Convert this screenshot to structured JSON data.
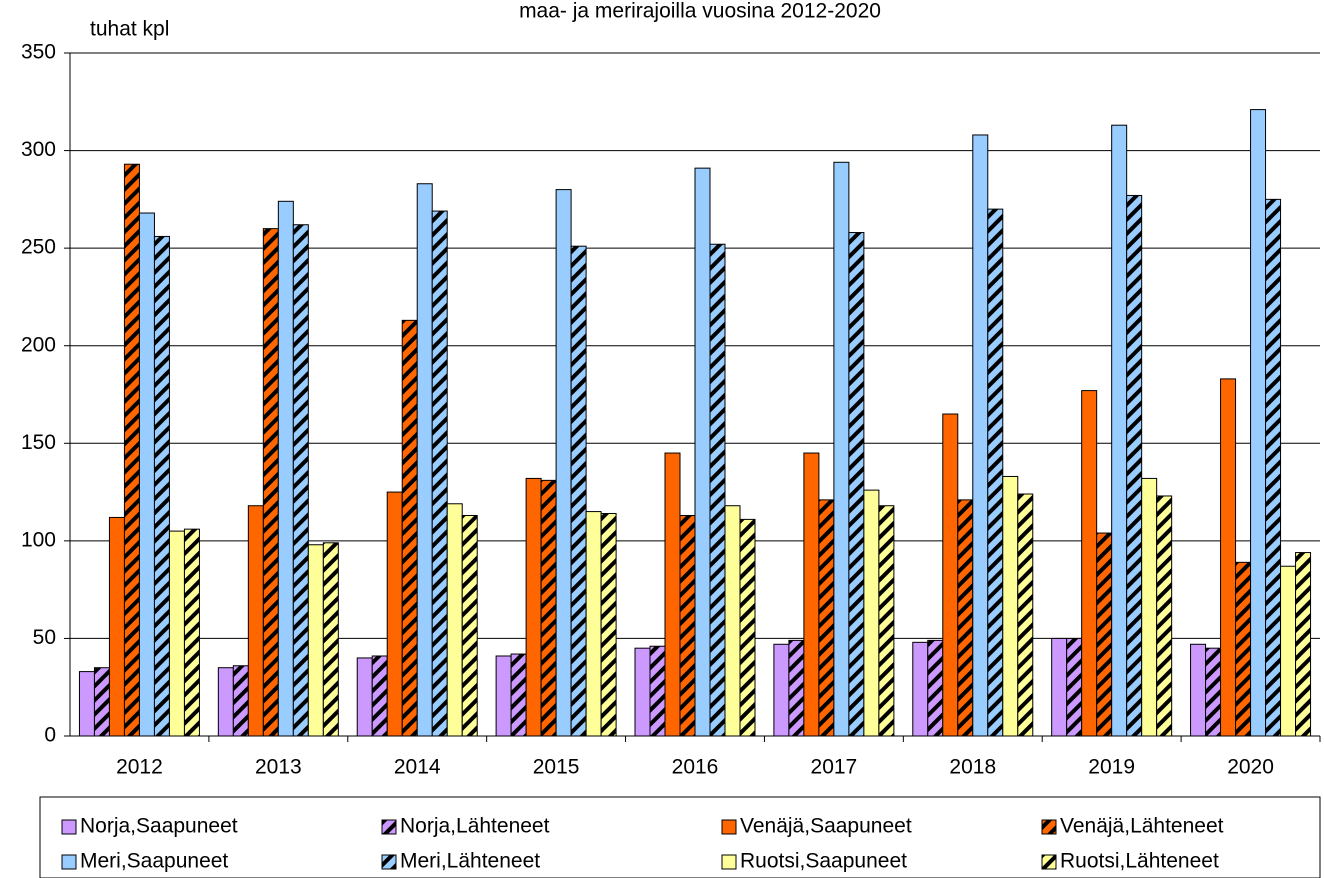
{
  "chart_data": {
    "type": "bar",
    "title": "maa- ja merirajoilla vuosina 2012-2020",
    "ylabel": "tuhat kpl",
    "categories": [
      "2012",
      "2013",
      "2014",
      "2015",
      "2016",
      "2017",
      "2018",
      "2019",
      "2020"
    ],
    "series": [
      {
        "name": "Norja,Saapuneet",
        "color": "#cc99ff",
        "hatched": false,
        "values": [
          33,
          35,
          40,
          41,
          45,
          47,
          48,
          50,
          47
        ]
      },
      {
        "name": "Norja,Lähteneet",
        "color": "#cc99ff",
        "hatched": true,
        "values": [
          35,
          36,
          41,
          42,
          46,
          49,
          49,
          50,
          45
        ]
      },
      {
        "name": "Venäjä,Saapuneet",
        "color": "#ff6600",
        "hatched": false,
        "values": [
          112,
          118,
          125,
          132,
          145,
          145,
          165,
          177,
          183
        ]
      },
      {
        "name": "Venäjä,Lähteneet",
        "color": "#ff6600",
        "hatched": true,
        "values": [
          293,
          260,
          213,
          131,
          113,
          121,
          121,
          104,
          89
        ]
      },
      {
        "name": "Meri,Saapuneet",
        "color": "#99ccff",
        "hatched": false,
        "values": [
          268,
          274,
          283,
          280,
          291,
          294,
          308,
          313,
          321
        ]
      },
      {
        "name": "Meri,Lähteneet",
        "color": "#99ccff",
        "hatched": true,
        "values": [
          256,
          262,
          269,
          251,
          252,
          258,
          270,
          277,
          275
        ]
      },
      {
        "name": "Ruotsi,Saapuneet",
        "color": "#ffff99",
        "hatched": false,
        "values": [
          105,
          98,
          119,
          115,
          118,
          126,
          133,
          132,
          87
        ]
      },
      {
        "name": "Ruotsi,Lähteneet",
        "color": "#ffff99",
        "hatched": true,
        "values": [
          106,
          99,
          113,
          114,
          111,
          118,
          124,
          123,
          94
        ]
      }
    ],
    "ylim": [
      0,
      350
    ],
    "yticks": [
      0,
      50,
      100,
      150,
      200,
      250,
      300,
      350
    ],
    "grid": true,
    "legend": "bottom"
  }
}
